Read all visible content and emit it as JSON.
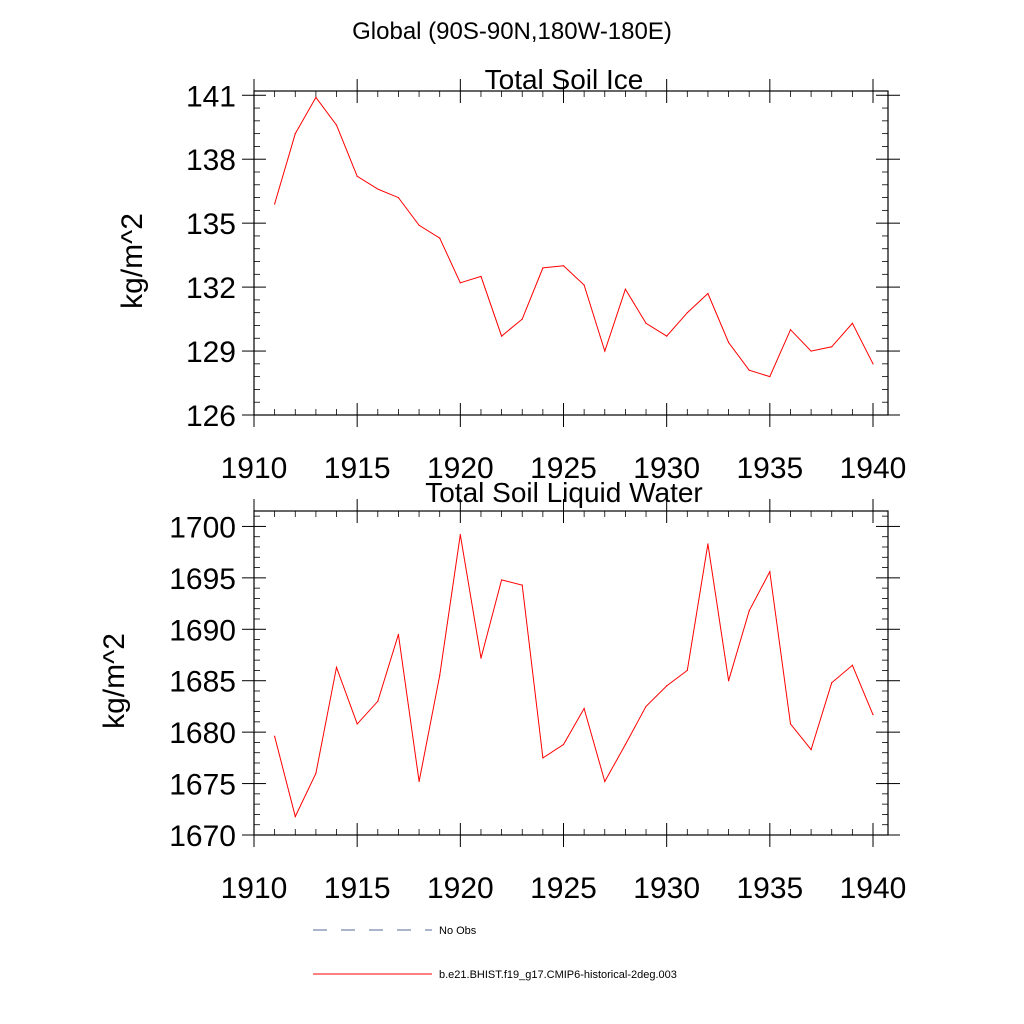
{
  "figure": {
    "title": "Global (90S-90N,180W-180E)"
  },
  "chart_data": [
    {
      "type": "line",
      "title": "Total Soil Ice",
      "xlabel": "",
      "ylabel": "kg/m^2",
      "xlim": [
        1910,
        1940
      ],
      "ylim": [
        126,
        141.2
      ],
      "x_ticks": [
        1910,
        1915,
        1920,
        1925,
        1930,
        1935,
        1940
      ],
      "x_tick_labels": [
        "1910",
        "1915",
        "1920",
        "1925",
        "1930",
        "1935",
        "1940"
      ],
      "y_ticks": [
        126,
        129,
        132,
        135,
        138,
        141
      ],
      "y_tick_labels": [
        "126",
        "129",
        "132",
        "135",
        "138",
        "141"
      ],
      "grid": false,
      "x": [
        1911,
        1912,
        1913,
        1914,
        1915,
        1916,
        1917,
        1918,
        1919,
        1920,
        1921,
        1922,
        1923,
        1924,
        1925,
        1926,
        1927,
        1928,
        1929,
        1930,
        1931,
        1932,
        1933,
        1934,
        1935,
        1936,
        1937,
        1938,
        1939,
        1940
      ],
      "series": [
        {
          "name": "b.e21.BHIST.f19_g17.CMIP6-historical-2deg.003",
          "color": "#ff0000",
          "values": [
            135.9,
            139.2,
            140.9,
            139.6,
            137.2,
            136.6,
            136.2,
            134.9,
            134.3,
            132.2,
            132.5,
            129.7,
            130.5,
            132.9,
            133.0,
            132.1,
            129.0,
            131.9,
            130.3,
            129.7,
            130.8,
            131.7,
            129.4,
            128.1,
            127.8,
            130.0,
            129.0,
            129.2,
            130.3,
            128.4
          ]
        }
      ]
    },
    {
      "type": "line",
      "title": "Total Soil Liquid Water",
      "xlabel": "",
      "ylabel": "kg/m^2",
      "xlim": [
        1910,
        1940
      ],
      "ylim": [
        1670,
        1701.5
      ],
      "x_ticks": [
        1910,
        1915,
        1920,
        1925,
        1930,
        1935,
        1940
      ],
      "x_tick_labels": [
        "1910",
        "1915",
        "1920",
        "1925",
        "1930",
        "1935",
        "1940"
      ],
      "y_ticks": [
        1670,
        1675,
        1680,
        1685,
        1690,
        1695,
        1700
      ],
      "y_tick_labels": [
        "1670",
        "1675",
        "1680",
        "1685",
        "1690",
        "1695",
        "1700"
      ],
      "grid": false,
      "x": [
        1911,
        1912,
        1913,
        1914,
        1915,
        1916,
        1917,
        1918,
        1919,
        1920,
        1921,
        1922,
        1923,
        1924,
        1925,
        1926,
        1927,
        1928,
        1929,
        1930,
        1931,
        1932,
        1933,
        1934,
        1935,
        1936,
        1937,
        1938,
        1939,
        1940
      ],
      "series": [
        {
          "name": "b.e21.BHIST.f19_g17.CMIP6-historical-2deg.003",
          "color": "#ff0000",
          "values": [
            1679.6,
            1671.8,
            1676.0,
            1686.3,
            1680.8,
            1683.0,
            1689.5,
            1675.2,
            1685.5,
            1699.2,
            1687.2,
            1694.8,
            1694.3,
            1677.5,
            1678.8,
            1682.3,
            1675.2,
            1678.8,
            1682.5,
            1684.5,
            1686.0,
            1698.3,
            1685.0,
            1691.8,
            1695.6,
            1680.8,
            1678.3,
            1684.8,
            1686.5,
            1681.7
          ]
        }
      ]
    }
  ],
  "legend": {
    "placement": "bottom-left",
    "entries": [
      {
        "label": "No Obs",
        "color": "#5a6a9a",
        "style": "dashed"
      },
      {
        "label": "b.e21.BHIST.f19_g17.CMIP6-historical-2deg.003",
        "color": "#ff0000",
        "style": "solid"
      }
    ]
  }
}
